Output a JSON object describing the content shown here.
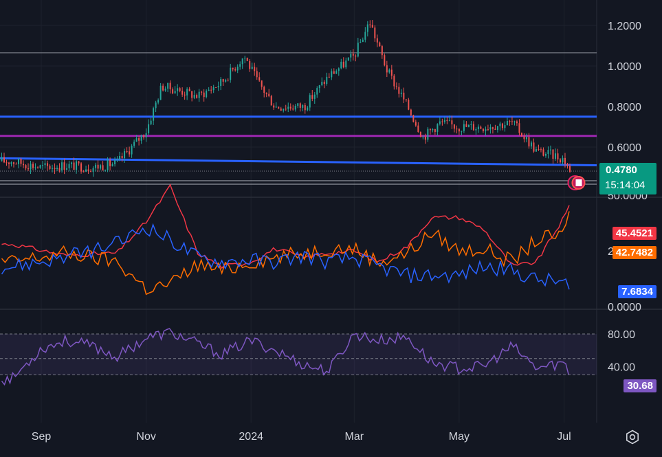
{
  "price_pane": {
    "axis_ticks": [
      "1.2000",
      "1.0000",
      "0.8000",
      "0.6000"
    ],
    "last_price": "0.4780",
    "countdown": "15:14:04"
  },
  "dmi_pane": {
    "axis_ticks": [
      "50.0000",
      "25.0000",
      "0.0000"
    ],
    "adx_value": "45.4521",
    "di_minus_value": "42.7482",
    "di_plus_value": "7.6834"
  },
  "rsi_pane": {
    "axis_ticks": [
      "80.00",
      "40.00"
    ],
    "rsi_value": "30.68"
  },
  "time_axis": [
    "Sep",
    "Nov",
    "2024",
    "Mar",
    "May",
    "Jul"
  ],
  "colors": {
    "up": "#26a69a",
    "down": "#ef5350",
    "blue_line": "#2962ff",
    "purple_line": "#9c27b0",
    "adx": "#f23645",
    "di_minus": "#ff6d00",
    "di_plus": "#2962ff",
    "rsi": "#7e57c2"
  },
  "chart_data": [
    {
      "type": "candlestick",
      "title": "",
      "ylim": [
        0.4,
        1.3
      ],
      "x": [
        "2023-08-15",
        "2023-09-01",
        "2023-09-15",
        "2023-10-01",
        "2023-10-15",
        "2023-11-01",
        "2023-11-10",
        "2023-11-20",
        "2023-12-01",
        "2023-12-15",
        "2023-12-28",
        "2024-01-05",
        "2024-01-15",
        "2024-02-01",
        "2024-02-15",
        "2024-03-01",
        "2024-03-10",
        "2024-03-20",
        "2024-04-01",
        "2024-04-10",
        "2024-04-20",
        "2024-05-01",
        "2024-05-15",
        "2024-06-01",
        "2024-06-15",
        "2024-06-25",
        "2024-07-01",
        "2024-07-05"
      ],
      "close": [
        0.53,
        0.5,
        0.51,
        0.5,
        0.52,
        0.68,
        0.9,
        0.88,
        0.85,
        0.92,
        1.05,
        0.92,
        0.8,
        0.8,
        0.95,
        1.05,
        1.22,
        0.98,
        0.8,
        0.65,
        0.72,
        0.7,
        0.7,
        0.72,
        0.58,
        0.56,
        0.54,
        0.478
      ],
      "horizontal_lines": [
        {
          "name": "",
          "color": "blue",
          "y_start": 0.75,
          "y_end": 0.75
        },
        {
          "name": "",
          "color": "purple",
          "y_start": 0.655,
          "y_end": 0.655
        },
        {
          "name": "",
          "color": "blue",
          "y_start": 0.545,
          "y_end": 0.51
        }
      ],
      "upper_line": 1.065
    },
    {
      "type": "line",
      "title": "",
      "ylim": [
        0,
        50
      ],
      "x": [
        "2023-08-15",
        "2023-09-15",
        "2023-10-15",
        "2023-11-01",
        "2023-11-15",
        "2023-12-01",
        "2023-12-15",
        "2024-01-01",
        "2024-01-15",
        "2024-02-01",
        "2024-02-15",
        "2024-03-01",
        "2024-03-15",
        "2024-04-01",
        "2024-04-15",
        "2024-05-01",
        "2024-05-15",
        "2024-06-01",
        "2024-06-15",
        "2024-07-01",
        "2024-07-05"
      ],
      "series": [
        {
          "name": "",
          "values": [
            28,
            23,
            24,
            38,
            54,
            24,
            18,
            20,
            26,
            22,
            24,
            25,
            20,
            27,
            40,
            40,
            35,
            18,
            20,
            40,
            45.4521
          ]
        },
        {
          "name": "",
          "values": [
            20,
            24,
            20,
            8,
            10,
            19,
            16,
            20,
            22,
            24,
            26,
            26,
            20,
            24,
            33,
            25,
            26,
            20,
            30,
            32,
            42.7482
          ]
        },
        {
          "name": "",
          "values": [
            18,
            22,
            28,
            36,
            30,
            22,
            20,
            21,
            20,
            23,
            20,
            22,
            18,
            14,
            14,
            14,
            18,
            16,
            12,
            11,
            7.6834
          ]
        }
      ]
    },
    {
      "type": "line",
      "title": "",
      "ylim": [
        20,
        90
      ],
      "x": [
        "2023-08-15",
        "2023-09-01",
        "2023-09-15",
        "2023-10-01",
        "2023-10-15",
        "2023-11-01",
        "2023-11-15",
        "2023-12-01",
        "2023-12-15",
        "2024-01-01",
        "2024-01-15",
        "2024-02-01",
        "2024-02-15",
        "2024-03-01",
        "2024-03-15",
        "2024-04-01",
        "2024-04-15",
        "2024-05-01",
        "2024-05-15",
        "2024-06-01",
        "2024-06-15",
        "2024-07-01",
        "2024-07-05"
      ],
      "series": [
        {
          "name": "",
          "values": [
            25,
            62,
            72,
            65,
            52,
            75,
            82,
            68,
            55,
            72,
            60,
            42,
            35,
            80,
            72,
            76,
            45,
            38,
            40,
            65,
            38,
            45,
            30.68
          ]
        }
      ],
      "bands": [
        30,
        50,
        80
      ]
    }
  ]
}
